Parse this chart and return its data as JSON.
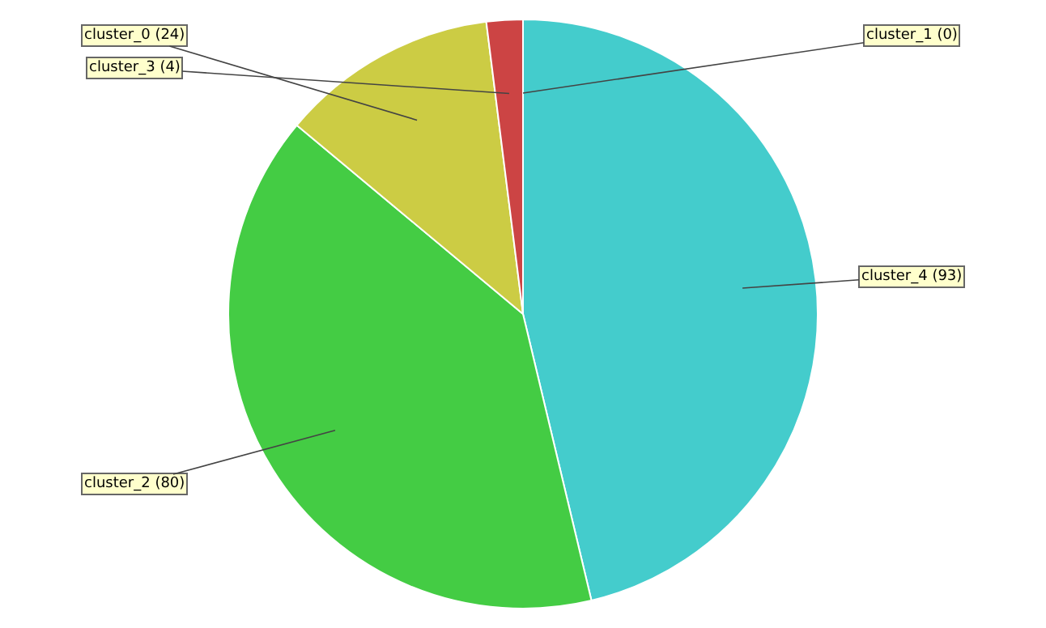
{
  "chart_data": {
    "type": "pie",
    "categories": [
      "cluster_1 (0)",
      "cluster_4 (93)",
      "cluster_2 (80)",
      "cluster_0 (24)",
      "cluster_3 (4)"
    ],
    "values": [
      0,
      93,
      80,
      24,
      4
    ],
    "colors": [
      "#4444cc",
      "#44cccc",
      "#44cc44",
      "#cccc44",
      "#cc4444"
    ],
    "legend": false
  }
}
